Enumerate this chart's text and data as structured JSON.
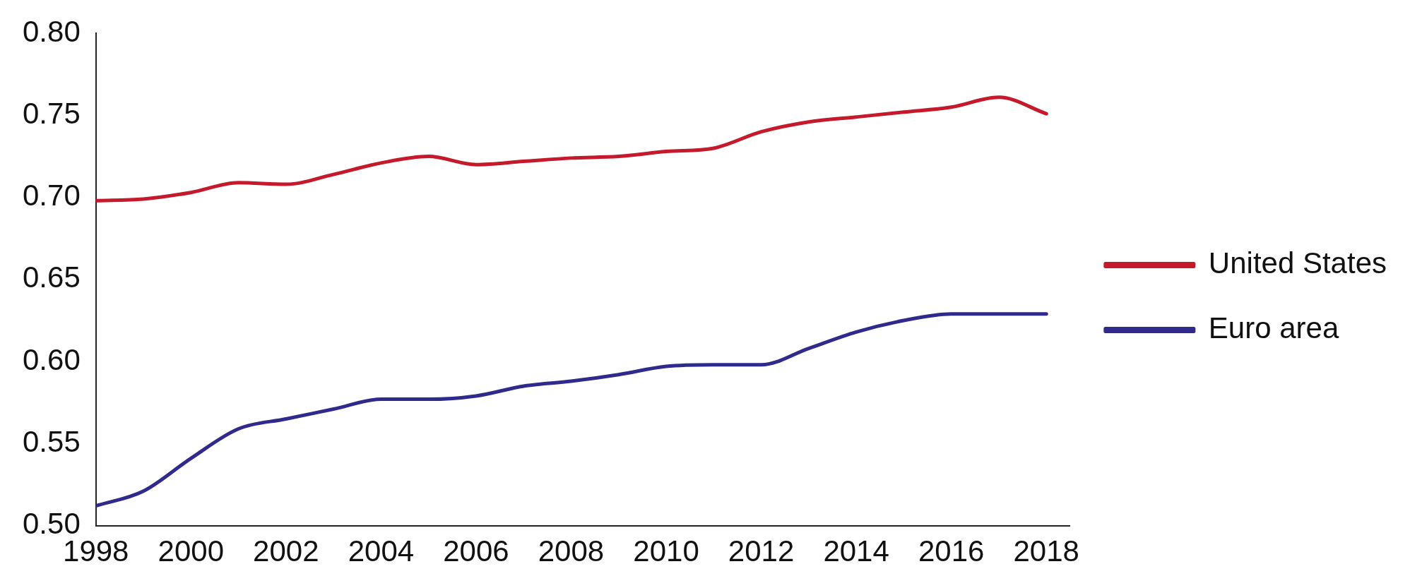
{
  "chart_data": {
    "type": "line",
    "x": [
      1998,
      1999,
      2000,
      2001,
      2002,
      2003,
      2004,
      2005,
      2006,
      2007,
      2008,
      2009,
      2010,
      2011,
      2012,
      2013,
      2014,
      2015,
      2016,
      2017,
      2018
    ],
    "series": [
      {
        "name": "United States",
        "color": "#c41a2b",
        "values": [
          0.698,
          0.699,
          0.703,
          0.709,
          0.708,
          0.714,
          0.721,
          0.725,
          0.72,
          0.722,
          0.724,
          0.725,
          0.728,
          0.73,
          0.74,
          0.746,
          0.749,
          0.752,
          0.755,
          0.761,
          0.751
        ]
      },
      {
        "name": "Euro area",
        "color": "#302a8c",
        "values": [
          0.512,
          0.521,
          0.541,
          0.559,
          0.565,
          0.571,
          0.577,
          0.577,
          0.579,
          0.585,
          0.588,
          0.592,
          0.597,
          0.598,
          0.598,
          0.608,
          0.618,
          0.625,
          0.629,
          0.629,
          0.629
        ]
      }
    ],
    "xlim": [
      1998,
      2018.5
    ],
    "xticks": [
      1998,
      2000,
      2002,
      2004,
      2006,
      2008,
      2010,
      2012,
      2014,
      2016,
      2018
    ],
    "ylim": [
      0.5,
      0.8
    ],
    "yticks": [
      {
        "value": 0.5,
        "label": "0.50"
      },
      {
        "value": 0.55,
        "label": "0.55"
      },
      {
        "value": 0.6,
        "label": "0.60"
      },
      {
        "value": 0.65,
        "label": "0.65"
      },
      {
        "value": 0.7,
        "label": "0.70"
      },
      {
        "value": 0.75,
        "label": "0.75"
      },
      {
        "value": 0.8,
        "label": "0.80"
      }
    ],
    "grid": false,
    "legend": "right",
    "marker": "none",
    "line_style": "solid"
  }
}
